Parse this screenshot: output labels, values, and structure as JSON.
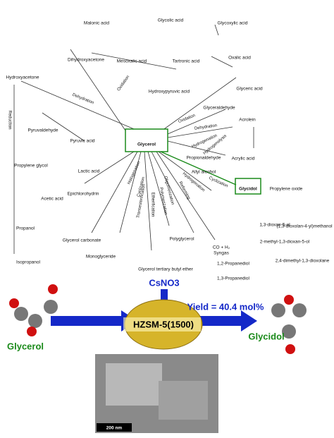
{
  "center": "Glycerol",
  "compounds": [
    "Malonic acid",
    "Glycolic acid",
    "Glycoxylic acid",
    "Dihydroxyacetone",
    "Mesoxalic acid",
    "Tartronic acid",
    "Oxalic acid",
    "Hydroxyacetone",
    "Hydroxypyruvic acid",
    "Glyceric acid",
    "Glyceraldehyde",
    "Pyruvaldehyde",
    "Pyruvic acid",
    "Acrolein",
    "Propylene glycol",
    "Lactic acid",
    "Propionaldehyde",
    "Acrylic acid",
    "Allyl alcohol",
    "Acetic acid",
    "Glycidol",
    "Propylene oxide",
    "Epichlorohydrin",
    "Propanol",
    "Glycerol carbonate",
    "1,3-dioxan-5-ol",
    "(1,3-dioxolan-4-yl)methanol",
    "Monoglyceride",
    "Polyglycerol",
    "2-methyl-1,3-dioxan-5-ol",
    "Isopropanol",
    "CO + H₂",
    "Syngas",
    "1,2-Propanediol",
    "2,4-dimethyl-1,3-dioxolane",
    "Glycerol tertiary butyl ether",
    "1,3-Propanediol"
  ],
  "reactions": [
    "Dehydration",
    "Oxidation",
    "Oxidation",
    "Reduction",
    "Halogenation",
    "Cyclization",
    "Transesterification",
    "Etherification",
    "Polymerization",
    "Oligomerization",
    "Reforming",
    "Hydrogenation",
    "Dehydration",
    "Hydrogenation",
    "Hydrogenolysis",
    "Cyclization"
  ],
  "scheme": {
    "reagent": "CsNO3",
    "catalyst": "HZSM-5(1500)",
    "yield": "Yield = 40.4 mol%",
    "reactant": "Glycerol",
    "product": "Glycidol",
    "scale": "200 nm"
  }
}
